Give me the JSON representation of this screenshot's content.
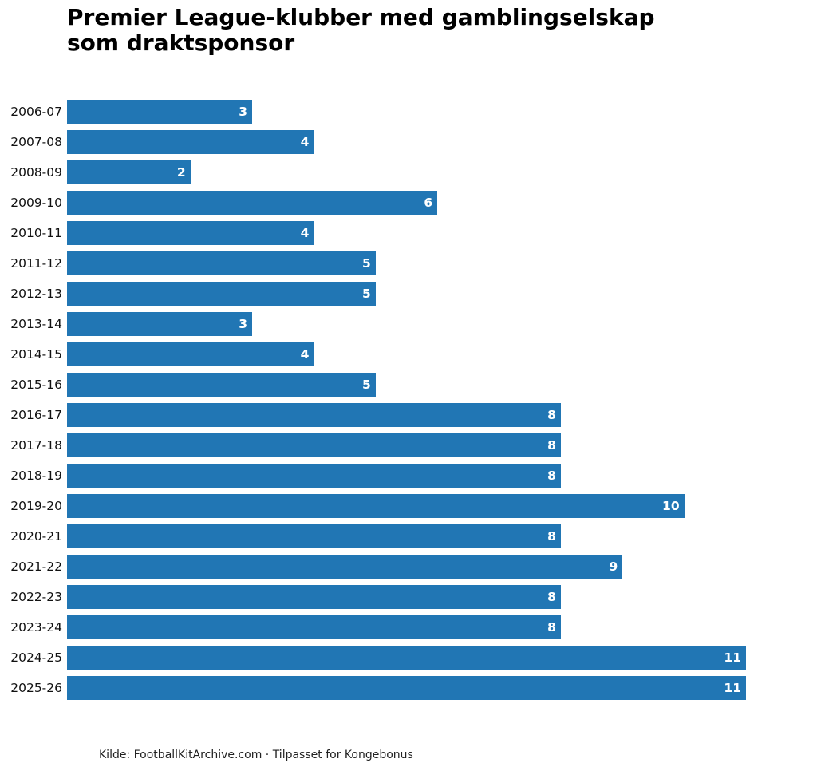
{
  "title": "Premier League-klubber med gamblingselskap\nsom draktsponsor",
  "source": "Kilde: FootballKitArchive.com · Tilpasset for Kongebonus",
  "bar_color": "#2176b4",
  "chart_data": {
    "type": "bar",
    "orientation": "horizontal",
    "title": "Premier League-klubber med gamblingselskap som draktsponsor",
    "xlabel": "",
    "ylabel": "",
    "categories": [
      "2006-07",
      "2007-08",
      "2008-09",
      "2009-10",
      "2010-11",
      "2011-12",
      "2012-13",
      "2013-14",
      "2014-15",
      "2015-16",
      "2016-17",
      "2017-18",
      "2018-19",
      "2019-20",
      "2020-21",
      "2021-22",
      "2022-23",
      "2023-24",
      "2024-25",
      "2025-26"
    ],
    "values": [
      3,
      4,
      2,
      6,
      4,
      5,
      5,
      3,
      4,
      5,
      8,
      8,
      8,
      10,
      8,
      9,
      8,
      8,
      11,
      11
    ],
    "xlim": [
      0,
      11
    ],
    "grid": false,
    "data_labels": true,
    "annotation": "Kilde: FootballKitArchive.com · Tilpasset for Kongebonus"
  }
}
